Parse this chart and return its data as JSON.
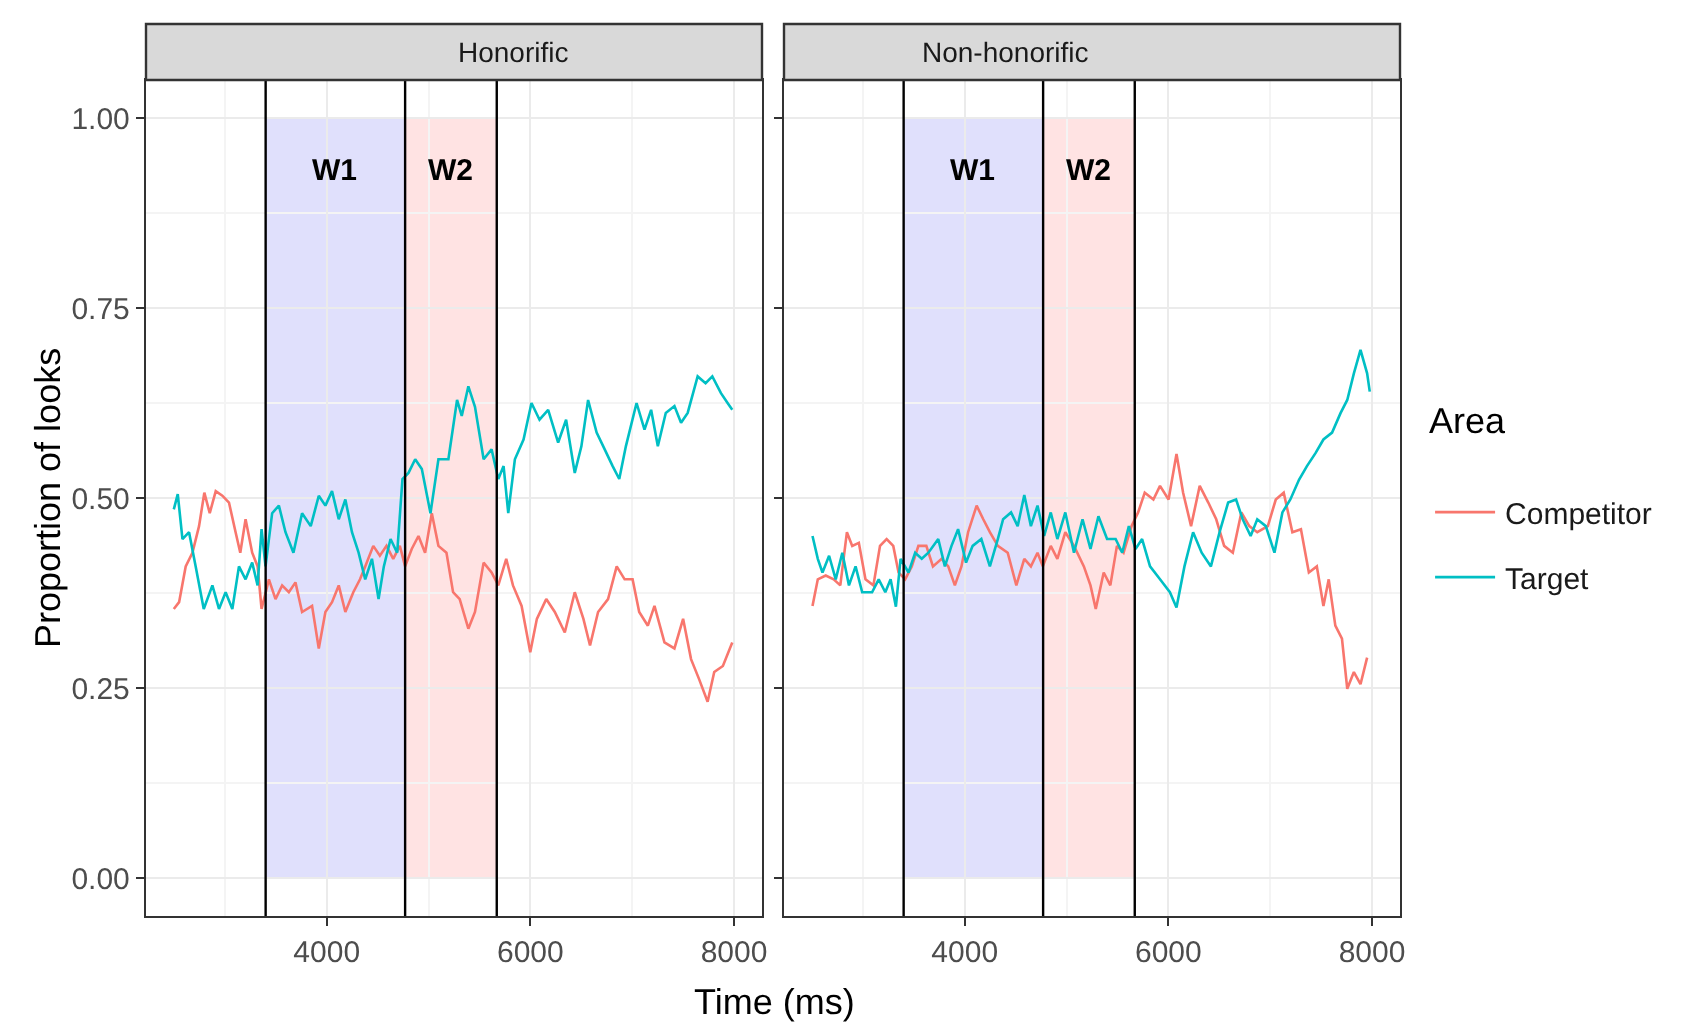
{
  "chart_data": [
    {
      "type": "line",
      "title": "Honorific",
      "xlabel": "Time (ms)",
      "ylabel": "Proportion of looks",
      "legend_title": "Area",
      "legend": "right",
      "grid": true,
      "tick_labels": true,
      "xlim": [
        2225,
        8275
      ],
      "xticks": [
        4000,
        6000,
        8000
      ],
      "ylim": [
        -0.05,
        1.05
      ],
      "yticks": [
        {
          "value": 0,
          "label": "0.00"
        },
        {
          "value": 0.25,
          "label": "0.25"
        },
        {
          "value": 0.5,
          "label": "0.50"
        },
        {
          "value": 0.75,
          "label": "0.75"
        },
        {
          "value": 1,
          "label": "1.00"
        }
      ],
      "bands": [
        {
          "axis": "x",
          "from": 3400,
          "to": 4770,
          "label": "W1",
          "color": "#e0e0fc"
        },
        {
          "axis": "x",
          "from": 4770,
          "to": 5670,
          "label": "W2",
          "color": "#ffe3e3"
        }
      ],
      "ref_lines": [
        {
          "axis": "x",
          "value": 3400,
          "color": "#000000"
        },
        {
          "axis": "x",
          "value": 4770,
          "color": "#000000"
        },
        {
          "axis": "x",
          "value": 5670,
          "color": "#000000"
        }
      ],
      "series": [
        {
          "name": "Competitor",
          "color": "#f8766d",
          "x": [
            2498,
            2550,
            2615,
            2681,
            2746,
            2798,
            2851,
            2910,
            2975,
            3040,
            3105,
            3151,
            3203,
            3268,
            3321,
            3360,
            3432,
            3497,
            3562,
            3628,
            3693,
            3758,
            3856,
            3922,
            3987,
            4052,
            4118,
            4183,
            4261,
            4327,
            4378,
            4457,
            4522,
            4587,
            4653,
            4718,
            4770,
            4835,
            4901,
            4966,
            5032,
            5097,
            5176,
            5241,
            5306,
            5391,
            5456,
            5541,
            5619,
            5685,
            5763,
            5829,
            5914,
            5999,
            6064,
            6156,
            6240,
            6338,
            6436,
            6521,
            6586,
            6665,
            6763,
            6848,
            6926,
            7004,
            7069,
            7154,
            7219,
            7317,
            7415,
            7500,
            7578,
            7656,
            7741,
            7806,
            7891,
            7983
          ],
          "values": [
            0.354,
            0.363,
            0.41,
            0.428,
            0.463,
            0.507,
            0.48,
            0.509,
            0.503,
            0.494,
            0.455,
            0.428,
            0.472,
            0.428,
            0.41,
            0.354,
            0.393,
            0.367,
            0.385,
            0.376,
            0.389,
            0.35,
            0.358,
            0.302,
            0.35,
            0.363,
            0.385,
            0.35,
            0.376,
            0.393,
            0.41,
            0.437,
            0.424,
            0.437,
            0.42,
            0.437,
            0.41,
            0.433,
            0.45,
            0.428,
            0.48,
            0.437,
            0.428,
            0.376,
            0.367,
            0.328,
            0.35,
            0.415,
            0.402,
            0.385,
            0.42,
            0.385,
            0.358,
            0.297,
            0.341,
            0.367,
            0.35,
            0.323,
            0.376,
            0.341,
            0.306,
            0.35,
            0.367,
            0.41,
            0.393,
            0.393,
            0.35,
            0.332,
            0.358,
            0.31,
            0.302,
            0.341,
            0.288,
            0.262,
            0.232,
            0.271,
            0.279,
            0.31
          ]
        },
        {
          "name": "Target",
          "color": "#00bfc4",
          "x": [
            2498,
            2537,
            2583,
            2648,
            2713,
            2792,
            2877,
            2942,
            3007,
            3073,
            3138,
            3203,
            3268,
            3321,
            3360,
            3399,
            3464,
            3530,
            3595,
            3673,
            3758,
            3843,
            3922,
            3987,
            4052,
            4118,
            4183,
            4248,
            4313,
            4378,
            4444,
            4509,
            4561,
            4627,
            4692,
            4744,
            4803,
            4869,
            4934,
            5019,
            5097,
            5195,
            5280,
            5326,
            5391,
            5456,
            5541,
            5619,
            5685,
            5737,
            5783,
            5848,
            5933,
            6011,
            6090,
            6175,
            6273,
            6351,
            6436,
            6501,
            6567,
            6651,
            6730,
            6808,
            6873,
            6938,
            7043,
            7121,
            7186,
            7252,
            7330,
            7415,
            7480,
            7545,
            7643,
            7721,
            7787,
            7872,
            7937,
            7983
          ],
          "values": [
            0.485,
            0.505,
            0.446,
            0.455,
            0.41,
            0.354,
            0.385,
            0.354,
            0.376,
            0.354,
            0.41,
            0.393,
            0.415,
            0.385,
            0.459,
            0.41,
            0.48,
            0.49,
            0.455,
            0.428,
            0.48,
            0.463,
            0.503,
            0.49,
            0.509,
            0.472,
            0.498,
            0.455,
            0.428,
            0.393,
            0.42,
            0.367,
            0.41,
            0.446,
            0.428,
            0.525,
            0.533,
            0.551,
            0.538,
            0.48,
            0.551,
            0.551,
            0.629,
            0.608,
            0.647,
            0.62,
            0.551,
            0.564,
            0.525,
            0.542,
            0.48,
            0.551,
            0.577,
            0.625,
            0.603,
            0.616,
            0.573,
            0.603,
            0.533,
            0.568,
            0.629,
            0.586,
            0.564,
            0.542,
            0.525,
            0.568,
            0.625,
            0.59,
            0.616,
            0.568,
            0.612,
            0.621,
            0.599,
            0.612,
            0.66,
            0.651,
            0.66,
            0.638,
            0.625,
            0.616
          ]
        }
      ]
    },
    {
      "type": "line",
      "title": "Non-honorific",
      "grid": true,
      "tick_labels": "x",
      "xlim": [
        2225,
        8275
      ],
      "xticks": [
        4000,
        6000,
        8000
      ],
      "ylim": [
        -0.05,
        1.05
      ],
      "yticks": [
        {
          "value": 0,
          "label": null
        },
        {
          "value": 0.25,
          "label": null
        },
        {
          "value": 0.5,
          "label": null
        },
        {
          "value": 0.75,
          "label": null
        },
        {
          "value": 1,
          "label": null
        }
      ],
      "bands": [
        {
          "axis": "x",
          "from": 3400,
          "to": 4770,
          "label": "W1",
          "color": "#e0e0fc"
        },
        {
          "axis": "x",
          "from": 4770,
          "to": 5670,
          "label": "W2",
          "color": "#ffe3e3"
        }
      ],
      "ref_lines": [
        {
          "axis": "x",
          "value": 3400,
          "color": "#000000"
        },
        {
          "axis": "x",
          "value": 4770,
          "color": "#000000"
        },
        {
          "axis": "x",
          "value": 5670,
          "color": "#000000"
        }
      ],
      "series": [
        {
          "color": "#f8766d",
          "x": [
            2505,
            2557,
            2635,
            2713,
            2778,
            2843,
            2895,
            2960,
            3025,
            3103,
            3168,
            3233,
            3298,
            3350,
            3415,
            3480,
            3545,
            3623,
            3688,
            3773,
            3838,
            3903,
            3968,
            4033,
            4117,
            4182,
            4247,
            4325,
            4422,
            4507,
            4585,
            4650,
            4715,
            4767,
            4845,
            4910,
            4988,
            5073,
            5170,
            5235,
            5287,
            5365,
            5430,
            5495,
            5560,
            5638,
            5703,
            5768,
            5853,
            5918,
            6002,
            6080,
            6145,
            6223,
            6308,
            6392,
            6470,
            6548,
            6633,
            6717,
            6795,
            6873,
            6977,
            7055,
            7133,
            7218,
            7302,
            7380,
            7458,
            7523,
            7575,
            7640,
            7705,
            7757,
            7822,
            7887,
            7952
          ],
          "values": [
            0.358,
            0.393,
            0.398,
            0.393,
            0.385,
            0.455,
            0.437,
            0.441,
            0.393,
            0.385,
            0.437,
            0.446,
            0.437,
            0.402,
            0.393,
            0.41,
            0.437,
            0.437,
            0.41,
            0.42,
            0.41,
            0.385,
            0.41,
            0.455,
            0.49,
            0.472,
            0.455,
            0.437,
            0.428,
            0.385,
            0.42,
            0.41,
            0.428,
            0.41,
            0.437,
            0.42,
            0.455,
            0.437,
            0.41,
            0.385,
            0.354,
            0.402,
            0.385,
            0.437,
            0.428,
            0.463,
            0.481,
            0.507,
            0.498,
            0.516,
            0.498,
            0.558,
            0.507,
            0.463,
            0.516,
            0.494,
            0.472,
            0.437,
            0.428,
            0.481,
            0.463,
            0.455,
            0.463,
            0.498,
            0.507,
            0.455,
            0.459,
            0.402,
            0.41,
            0.358,
            0.393,
            0.332,
            0.315,
            0.249,
            0.271,
            0.255,
            0.29
          ]
        },
        {
          "color": "#00bfc4",
          "x": [
            2505,
            2557,
            2603,
            2668,
            2733,
            2798,
            2863,
            2928,
            2993,
            3090,
            3155,
            3220,
            3272,
            3324,
            3370,
            3448,
            3513,
            3578,
            3643,
            3740,
            3805,
            3870,
            3935,
            4013,
            4078,
            4163,
            4247,
            4325,
            4377,
            4455,
            4520,
            4585,
            4650,
            4715,
            4780,
            4845,
            4910,
            4988,
            5073,
            5157,
            5235,
            5313,
            5398,
            5482,
            5547,
            5612,
            5677,
            5742,
            5820,
            5918,
            6015,
            6080,
            6158,
            6243,
            6327,
            6418,
            6503,
            6587,
            6665,
            6730,
            6808,
            6873,
            6957,
            7042,
            7120,
            7198,
            7283,
            7361,
            7445,
            7523,
            7608,
            7692,
            7757,
            7822,
            7887,
            7952,
            7978
          ],
          "values": [
            0.45,
            0.42,
            0.402,
            0.424,
            0.393,
            0.428,
            0.385,
            0.41,
            0.376,
            0.376,
            0.393,
            0.376,
            0.393,
            0.357,
            0.42,
            0.402,
            0.428,
            0.42,
            0.428,
            0.446,
            0.41,
            0.437,
            0.459,
            0.415,
            0.437,
            0.446,
            0.41,
            0.446,
            0.472,
            0.481,
            0.463,
            0.504,
            0.463,
            0.49,
            0.45,
            0.481,
            0.446,
            0.481,
            0.428,
            0.472,
            0.433,
            0.476,
            0.446,
            0.446,
            0.428,
            0.463,
            0.433,
            0.446,
            0.41,
            0.393,
            0.376,
            0.356,
            0.41,
            0.455,
            0.428,
            0.41,
            0.455,
            0.494,
            0.498,
            0.472,
            0.45,
            0.472,
            0.463,
            0.428,
            0.481,
            0.498,
            0.524,
            0.542,
            0.559,
            0.577,
            0.586,
            0.612,
            0.629,
            0.664,
            0.695,
            0.664,
            0.64
          ]
        }
      ]
    }
  ]
}
